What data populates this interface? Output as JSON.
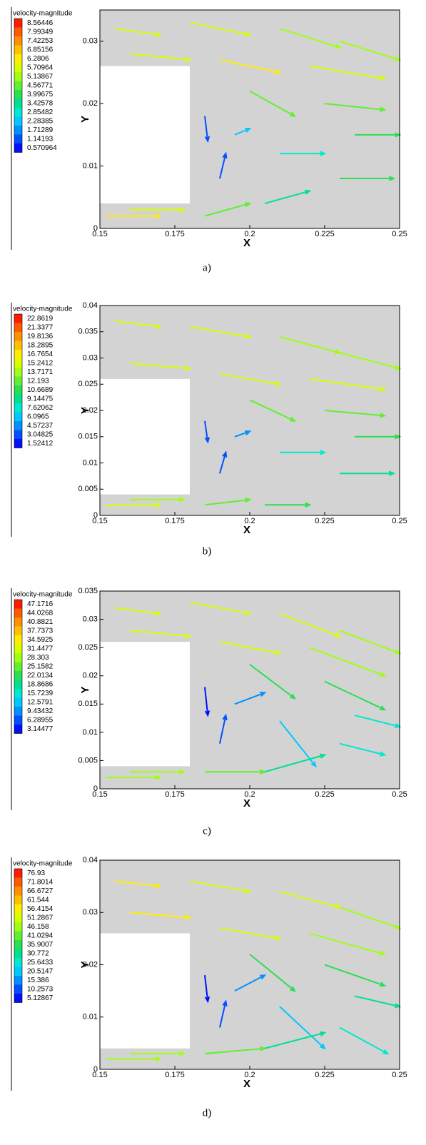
{
  "chart_data": [
    {
      "type": "vector-field",
      "legend_title": "velocity-magnitude",
      "levels": [
        8.56446,
        7.99349,
        7.42253,
        6.85156,
        6.2806,
        5.70964,
        5.13867,
        4.56771,
        3.99675,
        3.42578,
        2.85482,
        2.28385,
        1.71289,
        1.14193,
        0.570964
      ],
      "colors": [
        "#ff1a00",
        "#ff5a00",
        "#ff9000",
        "#ffc000",
        "#ffee00",
        "#d8ff00",
        "#a0ff10",
        "#60f030",
        "#28e050",
        "#00e090",
        "#00e8d0",
        "#00c8ff",
        "#0090ff",
        "#0050ff",
        "#0010ff"
      ],
      "xlabel": "X",
      "ylabel": "Y",
      "caption": "a)",
      "xlim": [
        0.15,
        0.25
      ],
      "ylim": [
        0,
        0.035
      ],
      "xticks": [
        0.15,
        0.175,
        0.2,
        0.225,
        0.25
      ],
      "yticks": [
        0,
        0.01,
        0.02,
        0.03
      ],
      "obstacle": {
        "x": [
          0.15,
          0.18
        ],
        "y": [
          0.004,
          0.026
        ]
      },
      "arrows": [
        [
          0.155,
          0.032,
          0.17,
          0.031,
          5.5
        ],
        [
          0.18,
          0.033,
          0.2,
          0.031,
          5.7
        ],
        [
          0.21,
          0.032,
          0.23,
          0.029,
          5.4
        ],
        [
          0.23,
          0.03,
          0.25,
          0.027,
          5.2
        ],
        [
          0.16,
          0.028,
          0.18,
          0.027,
          5.8
        ],
        [
          0.19,
          0.027,
          0.21,
          0.025,
          6.0
        ],
        [
          0.22,
          0.026,
          0.245,
          0.024,
          5.5
        ],
        [
          0.2,
          0.022,
          0.215,
          0.018,
          4.6
        ],
        [
          0.225,
          0.02,
          0.245,
          0.019,
          4.5
        ],
        [
          0.235,
          0.015,
          0.25,
          0.015,
          4.2
        ],
        [
          0.21,
          0.012,
          0.225,
          0.012,
          3.0
        ],
        [
          0.23,
          0.008,
          0.248,
          0.008,
          4.0
        ],
        [
          0.185,
          0.018,
          0.186,
          0.014,
          1.0
        ],
        [
          0.19,
          0.008,
          0.192,
          0.012,
          1.2
        ],
        [
          0.195,
          0.015,
          0.2,
          0.016,
          2.0
        ],
        [
          0.152,
          0.002,
          0.17,
          0.002,
          6.3
        ],
        [
          0.16,
          0.003,
          0.178,
          0.003,
          5.9
        ],
        [
          0.185,
          0.002,
          0.2,
          0.004,
          4.5
        ],
        [
          0.205,
          0.004,
          0.22,
          0.006,
          3.5
        ]
      ]
    },
    {
      "type": "vector-field",
      "legend_title": "velocity-magnitude",
      "levels": [
        22.8619,
        21.3377,
        19.8136,
        18.2895,
        16.7654,
        15.2412,
        13.7171,
        12.193,
        10.6689,
        9.14475,
        7.62062,
        6.0965,
        4.57237,
        3.04825,
        1.52412
      ],
      "colors": [
        "#ff1a00",
        "#ff5a00",
        "#ff9000",
        "#ffc000",
        "#ffee00",
        "#d8ff00",
        "#a0ff10",
        "#60f030",
        "#28e050",
        "#00e090",
        "#00e8d0",
        "#00c8ff",
        "#0090ff",
        "#0050ff",
        "#0010ff"
      ],
      "xlabel": "X",
      "ylabel": "Y",
      "caption": "b)",
      "xlim": [
        0.15,
        0.25
      ],
      "ylim": [
        0,
        0.04
      ],
      "xticks": [
        0.15,
        0.175,
        0.2,
        0.225,
        0.25
      ],
      "yticks": [
        0,
        0.005,
        0.01,
        0.015,
        0.02,
        0.025,
        0.03,
        0.035,
        0.04
      ],
      "obstacle": {
        "x": [
          0.15,
          0.18
        ],
        "y": [
          0.004,
          0.026
        ]
      },
      "arrows": [
        [
          0.155,
          0.037,
          0.17,
          0.036,
          14.5
        ],
        [
          0.18,
          0.036,
          0.2,
          0.034,
          15.0
        ],
        [
          0.21,
          0.034,
          0.23,
          0.031,
          14.2
        ],
        [
          0.23,
          0.031,
          0.25,
          0.028,
          13.9
        ],
        [
          0.16,
          0.029,
          0.18,
          0.028,
          15.5
        ],
        [
          0.19,
          0.027,
          0.21,
          0.025,
          15.8
        ],
        [
          0.22,
          0.026,
          0.245,
          0.024,
          14.6
        ],
        [
          0.2,
          0.022,
          0.215,
          0.018,
          12.3
        ],
        [
          0.225,
          0.02,
          0.245,
          0.019,
          12.0
        ],
        [
          0.235,
          0.015,
          0.25,
          0.015,
          11.2
        ],
        [
          0.21,
          0.012,
          0.225,
          0.012,
          8.0
        ],
        [
          0.23,
          0.008,
          0.248,
          0.008,
          9.1
        ],
        [
          0.185,
          0.018,
          0.186,
          0.014,
          2.4
        ],
        [
          0.19,
          0.008,
          0.192,
          0.012,
          3.2
        ],
        [
          0.195,
          0.015,
          0.2,
          0.016,
          5.3
        ],
        [
          0.152,
          0.002,
          0.17,
          0.002,
          14.8
        ],
        [
          0.16,
          0.003,
          0.178,
          0.003,
          13.9
        ],
        [
          0.185,
          0.002,
          0.2,
          0.003,
          12.0
        ],
        [
          0.205,
          0.002,
          0.22,
          0.002,
          10.5
        ]
      ]
    },
    {
      "type": "vector-field",
      "legend_title": "velocity-magnitude",
      "levels": [
        47.1716,
        44.0268,
        40.8821,
        37.7373,
        34.5925,
        31.4477,
        28.303,
        25.1582,
        22.0134,
        18.8686,
        15.7239,
        12.5791,
        9.43432,
        6.28955,
        3.14477
      ],
      "colors": [
        "#ff1a00",
        "#ff5a00",
        "#ff9000",
        "#ffc000",
        "#ffee00",
        "#d8ff00",
        "#a0ff10",
        "#60f030",
        "#28e050",
        "#00e090",
        "#00e8d0",
        "#00c8ff",
        "#0090ff",
        "#0050ff",
        "#0010ff"
      ],
      "xlabel": "X",
      "ylabel": "Y",
      "caption": "c)",
      "xlim": [
        0.15,
        0.25
      ],
      "ylim": [
        0,
        0.035
      ],
      "xticks": [
        0.15,
        0.175,
        0.2,
        0.225,
        0.25
      ],
      "yticks": [
        0,
        0.005,
        0.01,
        0.015,
        0.02,
        0.025,
        0.03,
        0.035
      ],
      "obstacle": {
        "x": [
          0.15,
          0.18
        ],
        "y": [
          0.004,
          0.026
        ]
      },
      "arrows": [
        [
          0.155,
          0.032,
          0.17,
          0.031,
          30.0
        ],
        [
          0.18,
          0.033,
          0.2,
          0.031,
          31.0
        ],
        [
          0.21,
          0.031,
          0.23,
          0.027,
          30.0
        ],
        [
          0.23,
          0.028,
          0.25,
          0.024,
          29.0
        ],
        [
          0.16,
          0.028,
          0.18,
          0.027,
          32.0
        ],
        [
          0.19,
          0.026,
          0.21,
          0.024,
          30.5
        ],
        [
          0.22,
          0.025,
          0.245,
          0.02,
          27.0
        ],
        [
          0.2,
          0.022,
          0.215,
          0.016,
          22.0
        ],
        [
          0.225,
          0.019,
          0.245,
          0.014,
          21.0
        ],
        [
          0.235,
          0.013,
          0.25,
          0.011,
          17.0
        ],
        [
          0.21,
          0.012,
          0.222,
          0.004,
          12.5
        ],
        [
          0.23,
          0.008,
          0.245,
          0.006,
          16.0
        ],
        [
          0.185,
          0.018,
          0.186,
          0.013,
          4.0
        ],
        [
          0.19,
          0.008,
          0.192,
          0.013,
          5.0
        ],
        [
          0.195,
          0.015,
          0.205,
          0.017,
          8.5
        ],
        [
          0.152,
          0.002,
          0.17,
          0.002,
          28.5
        ],
        [
          0.16,
          0.003,
          0.178,
          0.003,
          27.0
        ],
        [
          0.185,
          0.003,
          0.205,
          0.003,
          25.0
        ],
        [
          0.205,
          0.003,
          0.225,
          0.006,
          20.0
        ]
      ]
    },
    {
      "type": "vector-field",
      "legend_title": "velocity-magnitude",
      "levels": [
        76.93,
        71.8014,
        66.6727,
        61.544,
        56.4154,
        51.2867,
        46.158,
        41.0294,
        35.9007,
        30.772,
        25.6433,
        20.5147,
        15.386,
        10.2573,
        5.12867
      ],
      "colors": [
        "#ff1a00",
        "#ff5a00",
        "#ff9000",
        "#ffc000",
        "#ffee00",
        "#d8ff00",
        "#a0ff10",
        "#60f030",
        "#28e050",
        "#00e090",
        "#00e8d0",
        "#00c8ff",
        "#0090ff",
        "#0050ff",
        "#0010ff"
      ],
      "xlabel": "X",
      "ylabel": "Y",
      "caption": "d)",
      "xlim": [
        0.15,
        0.25
      ],
      "ylim": [
        0,
        0.04
      ],
      "xticks": [
        0.15,
        0.175,
        0.2,
        0.225,
        0.25
      ],
      "yticks": [
        0,
        0.01,
        0.02,
        0.03,
        0.04
      ],
      "obstacle": {
        "x": [
          0.15,
          0.18
        ],
        "y": [
          0.004,
          0.026
        ]
      },
      "arrows": [
        [
          0.155,
          0.036,
          0.17,
          0.035,
          55.0
        ],
        [
          0.18,
          0.036,
          0.2,
          0.034,
          53.0
        ],
        [
          0.21,
          0.034,
          0.23,
          0.031,
          50.0
        ],
        [
          0.23,
          0.031,
          0.25,
          0.027,
          48.0
        ],
        [
          0.16,
          0.03,
          0.18,
          0.029,
          54.0
        ],
        [
          0.19,
          0.027,
          0.21,
          0.025,
          51.0
        ],
        [
          0.22,
          0.026,
          0.245,
          0.022,
          46.0
        ],
        [
          0.2,
          0.022,
          0.215,
          0.015,
          35.0
        ],
        [
          0.225,
          0.02,
          0.245,
          0.016,
          38.0
        ],
        [
          0.235,
          0.014,
          0.25,
          0.012,
          30.0
        ],
        [
          0.21,
          0.012,
          0.225,
          0.004,
          20.0
        ],
        [
          0.23,
          0.008,
          0.246,
          0.003,
          26.0
        ],
        [
          0.185,
          0.018,
          0.186,
          0.013,
          6.0
        ],
        [
          0.19,
          0.008,
          0.192,
          0.013,
          8.0
        ],
        [
          0.195,
          0.015,
          0.205,
          0.018,
          14.0
        ],
        [
          0.152,
          0.002,
          0.17,
          0.002,
          47.0
        ],
        [
          0.16,
          0.003,
          0.178,
          0.003,
          45.0
        ],
        [
          0.185,
          0.003,
          0.205,
          0.004,
          40.0
        ],
        [
          0.205,
          0.004,
          0.225,
          0.007,
          33.0
        ]
      ]
    }
  ]
}
